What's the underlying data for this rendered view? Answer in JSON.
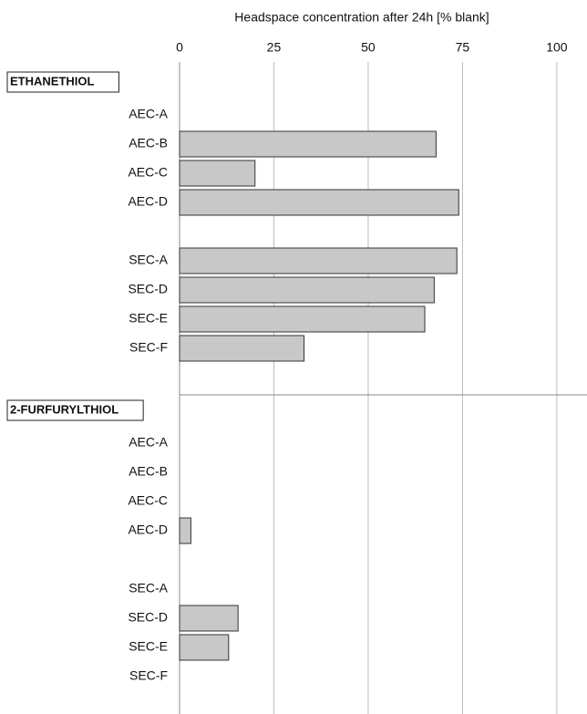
{
  "chart_data": {
    "type": "bar",
    "orientation": "horizontal",
    "title": "Headspace concentration after 24h [% blank]",
    "xlim": [
      0,
      108
    ],
    "xticks": [
      0,
      25,
      50,
      75,
      100
    ],
    "grid": true,
    "color": "#c8c8c8",
    "groups": [
      {
        "name": "ETHANETHIOL",
        "subgroups": [
          {
            "categories": [
              "AEC-A",
              "AEC-B",
              "AEC-C",
              "AEC-D"
            ],
            "values": [
              null,
              68,
              20,
              74
            ]
          },
          {
            "categories": [
              "SEC-A",
              "SEC-D",
              "SEC-E",
              "SEC-F"
            ],
            "values": [
              73.5,
              67.5,
              65,
              33
            ]
          }
        ]
      },
      {
        "name": "2-FURFURYLTHIOL",
        "subgroups": [
          {
            "categories": [
              "AEC-A",
              "AEC-B",
              "AEC-C",
              "AEC-D"
            ],
            "values": [
              null,
              null,
              null,
              3
            ]
          },
          {
            "categories": [
              "SEC-A",
              "SEC-D",
              "SEC-E",
              "SEC-F"
            ],
            "values": [
              null,
              15.5,
              13,
              null
            ]
          }
        ]
      }
    ]
  }
}
